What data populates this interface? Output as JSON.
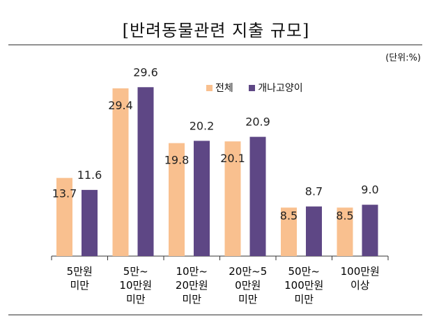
{
  "title": "[반려동물관련 지출 규모]",
  "unit_label": "(단위:%)",
  "colors": {
    "series_0": "#F9C08F",
    "series_1": "#5E4785"
  },
  "chart_data": {
    "type": "bar",
    "title": "[반려동물관련 지출 규모]",
    "xlabel": "",
    "ylabel": "",
    "unit": "(단위:%)",
    "ylim": [
      0,
      32
    ],
    "grid": false,
    "legend": "top-right",
    "categories": [
      "5만원\n미만",
      "5만~\n10만원\n미만",
      "10만~\n20만원\n미만",
      "20만~5\n0만원\n미만",
      "50만~\n100만원\n미만",
      "100만원\n이상"
    ],
    "series": [
      {
        "name": "전체",
        "values": [
          13.7,
          29.4,
          19.8,
          20.1,
          8.5,
          8.5
        ]
      },
      {
        "name": "개나고양이",
        "values": [
          11.6,
          29.6,
          20.2,
          20.9,
          8.7,
          9.0
        ]
      }
    ]
  }
}
